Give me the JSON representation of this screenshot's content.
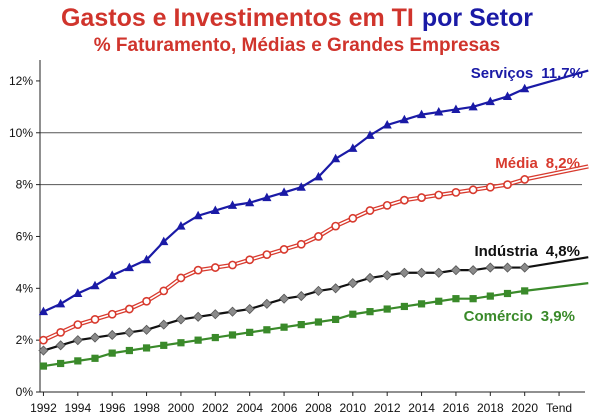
{
  "chart_data": {
    "type": "line",
    "title_part1": "Gastos e Investimentos em TI",
    "title_part2": "por Setor",
    "subtitle": "% Faturamento, Médias e Grandes Empresas",
    "xlabel": "",
    "ylabel": "",
    "ylim": [
      0,
      13
    ],
    "y_ticks": [
      "0%",
      "2%",
      "4%",
      "6%",
      "8%",
      "10%",
      "12%"
    ],
    "y_tick_values": [
      0,
      2,
      4,
      6,
      8,
      10,
      12
    ],
    "x_tick_labels": [
      "1992",
      "1994",
      "1996",
      "1998",
      "2000",
      "2002",
      "2004",
      "2006",
      "2008",
      "2010",
      "2012",
      "2014",
      "2016",
      "2018",
      "2020",
      "Tend"
    ],
    "x_tick_positions": [
      1992,
      1994,
      1996,
      1998,
      2000,
      2002,
      2004,
      2006,
      2008,
      2010,
      2012,
      2014,
      2016,
      2018,
      2020,
      2022
    ],
    "xlim": [
      1991.8,
      2023.8
    ],
    "gridlines": [
      8,
      10
    ],
    "grid": "partial",
    "years": [
      1992,
      1993,
      1994,
      1995,
      1996,
      1997,
      1998,
      1999,
      2000,
      2001,
      2002,
      2003,
      2004,
      2005,
      2006,
      2007,
      2008,
      2009,
      2010,
      2011,
      2012,
      2013,
      2014,
      2015,
      2016,
      2017,
      2018,
      2019,
      2020
    ],
    "trend_end_x": 2023.7,
    "series": [
      {
        "label": "Serviços",
        "value_label": "11,7%",
        "color": "#1a1aa6",
        "marker": "triangle",
        "values": [
          3.1,
          3.4,
          3.8,
          4.1,
          4.5,
          4.8,
          5.1,
          5.8,
          6.4,
          6.8,
          7.0,
          7.2,
          7.3,
          7.5,
          7.7,
          7.9,
          8.3,
          9.0,
          9.4,
          9.9,
          10.3,
          10.5,
          10.7,
          10.8,
          10.9,
          11.0,
          11.2,
          11.4,
          11.7
        ],
        "trend_end": 12.4
      },
      {
        "label": "Média",
        "value_label": "8,2%",
        "color": "#d83a2e",
        "marker": "circle",
        "values": [
          2.0,
          2.3,
          2.6,
          2.8,
          3.0,
          3.2,
          3.5,
          3.9,
          4.4,
          4.7,
          4.8,
          4.9,
          5.1,
          5.3,
          5.5,
          5.7,
          6.0,
          6.4,
          6.7,
          7.0,
          7.2,
          7.4,
          7.5,
          7.6,
          7.7,
          7.8,
          7.9,
          8.0,
          8.2
        ],
        "trend_end": 8.7
      },
      {
        "label": "Indústria",
        "value_label": "4,8%",
        "color": "#111111",
        "marker": "diamond",
        "values": [
          1.6,
          1.8,
          2.0,
          2.1,
          2.2,
          2.3,
          2.4,
          2.6,
          2.8,
          2.9,
          3.0,
          3.1,
          3.2,
          3.4,
          3.6,
          3.7,
          3.9,
          4.0,
          4.2,
          4.4,
          4.5,
          4.6,
          4.6,
          4.6,
          4.7,
          4.7,
          4.8,
          4.8,
          4.8
        ],
        "trend_end": 5.2
      },
      {
        "label": "Comércio",
        "value_label": "3,9%",
        "color": "#3a8a2a",
        "marker": "square",
        "values": [
          1.0,
          1.1,
          1.2,
          1.3,
          1.5,
          1.6,
          1.7,
          1.8,
          1.9,
          2.0,
          2.1,
          2.2,
          2.3,
          2.4,
          2.5,
          2.6,
          2.7,
          2.8,
          3.0,
          3.1,
          3.2,
          3.3,
          3.4,
          3.5,
          3.6,
          3.6,
          3.7,
          3.8,
          3.9
        ],
        "trend_end": 4.2
      }
    ]
  },
  "colors": {
    "title_main": "#d0342c",
    "title_accent": "#1a1aa6",
    "subtitle": "#d0342c",
    "axis": "#222222",
    "grid": "#555555"
  }
}
